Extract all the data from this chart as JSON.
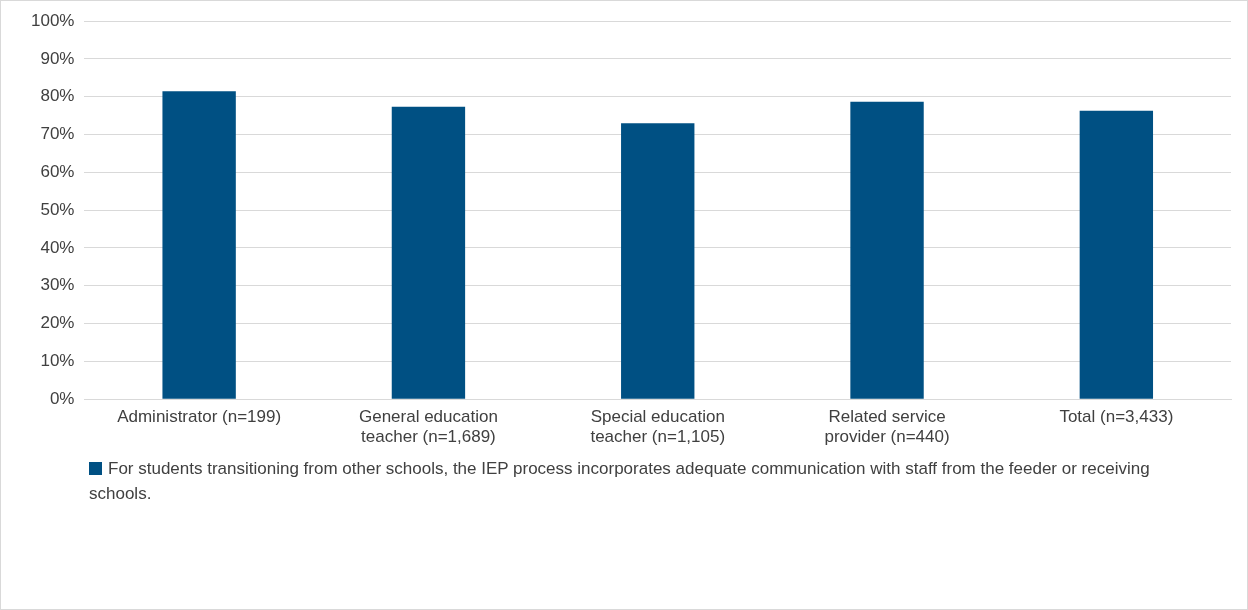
{
  "chart_data": {
    "type": "bar",
    "categories": [
      "Administrator (n=199)",
      "General education teacher (n=1,689)",
      "Special education teacher (n=1,105)",
      "Related service provider (n=440)",
      "Total (n=3,433)"
    ],
    "series": [
      {
        "name": "For students transitioning from other schools, the IEP process incorporates adequate communication with staff from the feeder or receiving schools.",
        "color": "#005083",
        "values": [
          81.5,
          77.4,
          73.0,
          78.7,
          76.3
        ]
      }
    ],
    "ylim": [
      0,
      100
    ],
    "yticks": [
      {
        "value": 0,
        "label": "0%"
      },
      {
        "value": 10,
        "label": "10%"
      },
      {
        "value": 20,
        "label": "20%"
      },
      {
        "value": 30,
        "label": "30%"
      },
      {
        "value": 40,
        "label": "40%"
      },
      {
        "value": 50,
        "label": "50%"
      },
      {
        "value": 60,
        "label": "60%"
      },
      {
        "value": 70,
        "label": "70%"
      },
      {
        "value": 80,
        "label": "80%"
      },
      {
        "value": 90,
        "label": "90%"
      },
      {
        "value": 100,
        "label": "100%"
      }
    ],
    "grid": "y",
    "legend": "bottom"
  }
}
